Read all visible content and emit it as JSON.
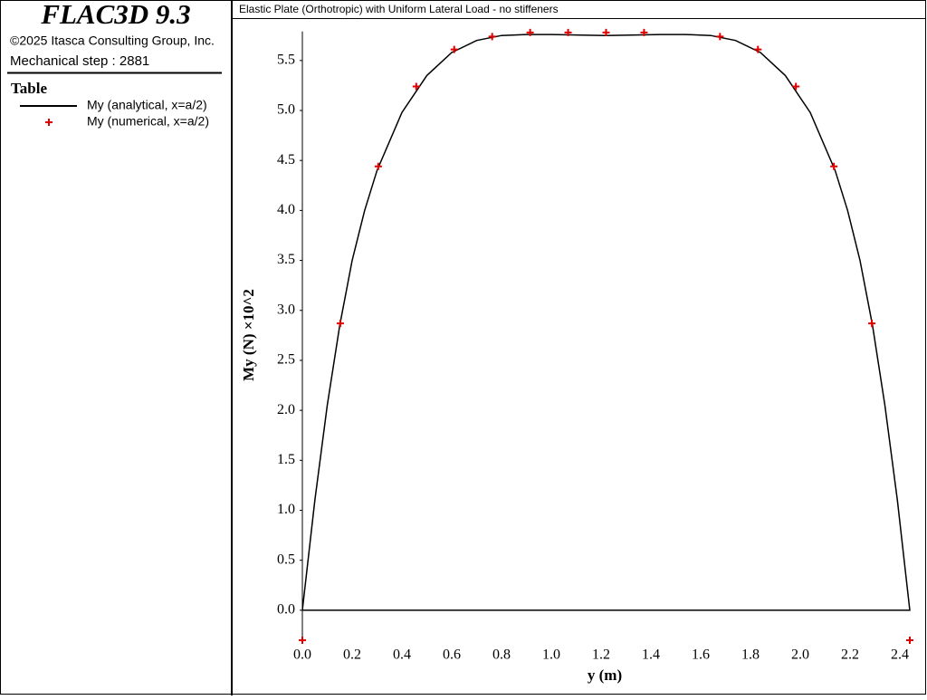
{
  "header": {
    "product": "FLAC3D 9.3",
    "copyright": "©2025 Itasca Consulting Group, Inc.",
    "step": "Mechanical step : 2881",
    "panel_title": "Table"
  },
  "chart_data": {
    "type": "line",
    "title": "Elastic Plate (Orthotropic) with Uniform Lateral Load - no stiffeners",
    "x_label": "y (m)",
    "y_label": "My (N) ×10^2",
    "xlim": [
      0,
      2.44
    ],
    "ylim": [
      -0.3,
      5.79
    ],
    "xticks": [
      {
        "value": 0,
        "label": "0.0"
      },
      0.2,
      0.4,
      0.6,
      0.8,
      {
        "value": 1,
        "label": "1.0"
      },
      1.2,
      1.4,
      1.6,
      1.8,
      {
        "value": 2,
        "label": "2.0"
      },
      2.2,
      2.4
    ],
    "yticks": [
      {
        "value": 0,
        "label": "0.0"
      },
      0.5,
      {
        "value": 1,
        "label": "1.0"
      },
      1.5,
      {
        "value": 2,
        "label": "2.0"
      },
      2.5,
      {
        "value": 3,
        "label": "3.0"
      },
      3.5,
      {
        "value": 4,
        "label": "4.0"
      },
      4.5,
      {
        "value": 5,
        "label": "5.0"
      },
      5.5
    ],
    "series": [
      {
        "name": "My (analytical, x=a/2)",
        "color": "#000000",
        "style": "line",
        "x": [
          0,
          0.05,
          0.1,
          0.15,
          0.2,
          0.25,
          0.3,
          0.4,
          0.5,
          0.6,
          0.7,
          0.8,
          0.9,
          1.0,
          1.22,
          1.44,
          1.54,
          1.64,
          1.74,
          1.84,
          1.94,
          2.04,
          2.14,
          2.19,
          2.24,
          2.29,
          2.34,
          2.39,
          2.44,
          0
        ],
        "values": [
          0,
          1.1,
          2.05,
          2.85,
          3.5,
          4.0,
          4.4,
          4.98,
          5.35,
          5.58,
          5.7,
          5.75,
          5.76,
          5.76,
          5.75,
          5.76,
          5.76,
          5.75,
          5.7,
          5.58,
          5.35,
          4.98,
          4.4,
          4.0,
          3.5,
          2.85,
          2.05,
          1.1,
          0,
          0
        ]
      },
      {
        "name": "My (numerical, x=a/2)",
        "color": "#e00000",
        "style": "marker",
        "x": [
          0,
          0.1525,
          0.305,
          0.4575,
          0.61,
          0.7625,
          0.915,
          1.0675,
          1.22,
          1.3725,
          1.6775,
          1.83,
          1.9825,
          2.135,
          2.2875,
          2.44
        ],
        "values": [
          -0.3,
          2.87,
          4.44,
          5.24,
          5.61,
          5.74,
          5.78,
          5.78,
          5.78,
          5.78,
          5.74,
          5.61,
          5.24,
          4.44,
          2.87,
          -0.3
        ]
      }
    ]
  }
}
